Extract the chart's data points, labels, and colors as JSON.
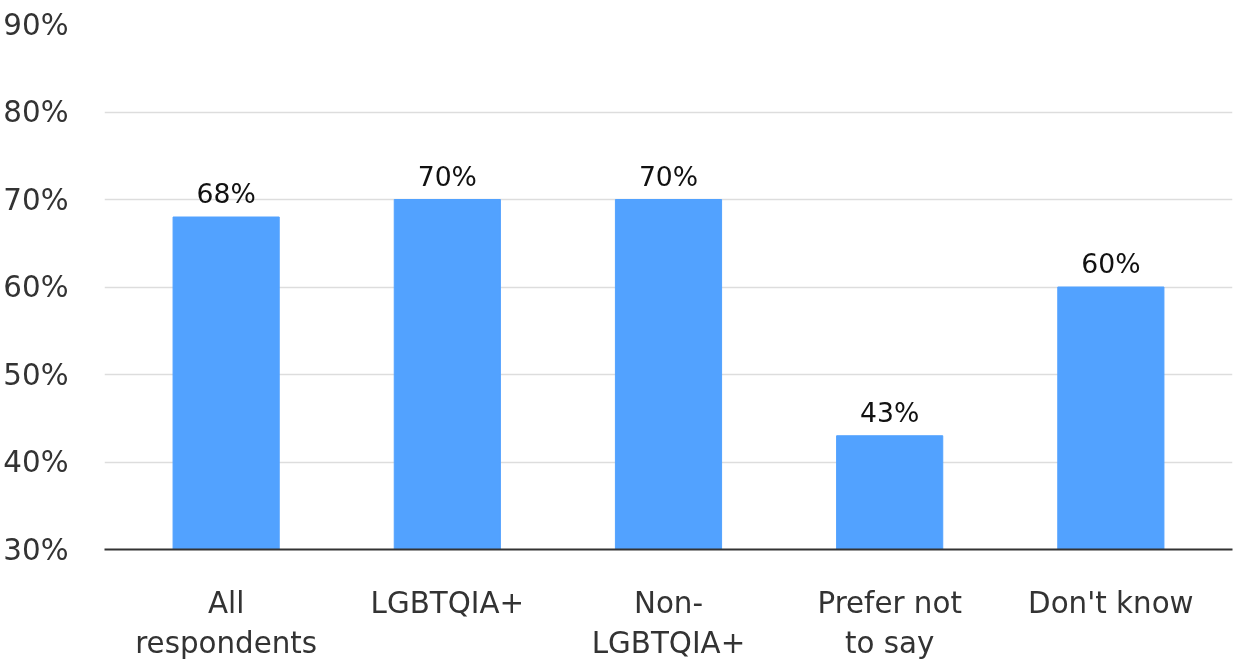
{
  "chart_data": {
    "type": "bar",
    "categories": [
      "All respondents",
      "LGBTQIA+",
      "Non-LGBTQIA+",
      "Prefer not to say",
      "Don't know"
    ],
    "values": [
      68,
      70,
      70,
      43,
      60
    ],
    "value_labels": [
      "68%",
      "70%",
      "70%",
      "43%",
      "60%"
    ],
    "color": "#52a2ff",
    "ylim": [
      30,
      90
    ],
    "yticks": [
      {
        "value": 30,
        "label": "30%"
      },
      {
        "value": 40,
        "label": "40%"
      },
      {
        "value": 50,
        "label": "50%"
      },
      {
        "value": 60,
        "label": "60%"
      },
      {
        "value": 70,
        "label": "70%"
      },
      {
        "value": 80,
        "label": "80%"
      },
      {
        "value": 90,
        "label": "90%"
      }
    ],
    "grid": "y"
  }
}
